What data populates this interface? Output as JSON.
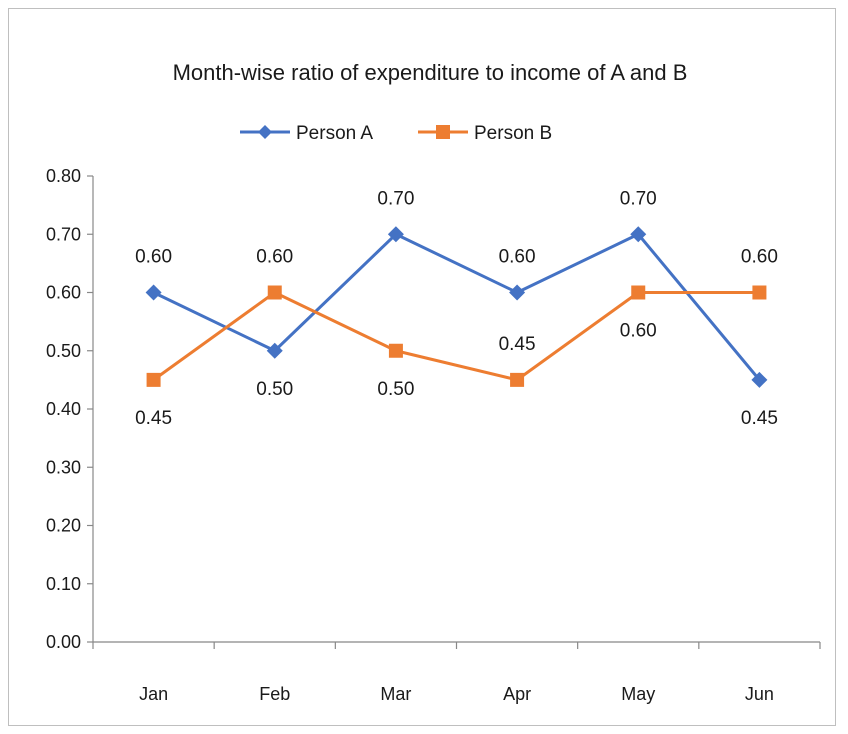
{
  "chart_data": {
    "type": "line",
    "title": "Month-wise ratio of expenditure to income of A and B",
    "categories": [
      "Jan",
      "Feb",
      "Mar",
      "Apr",
      "May",
      "Jun"
    ],
    "ylim": [
      0,
      0.8
    ],
    "yticks": [
      "0.00",
      "0.10",
      "0.20",
      "0.30",
      "0.40",
      "0.50",
      "0.60",
      "0.70",
      "0.80"
    ],
    "grid": false,
    "legend_position": "top",
    "series": [
      {
        "name": "Person A",
        "color": "#4472c4",
        "marker": "diamond",
        "values": [
          0.6,
          0.5,
          0.7,
          0.6,
          0.7,
          0.45
        ],
        "labels": [
          "0.60",
          "0.50",
          "0.70",
          "0.60",
          "0.70",
          "0.45"
        ],
        "label_positions": [
          "above",
          "below",
          "above",
          "above",
          "above",
          "below"
        ]
      },
      {
        "name": "Person B",
        "color": "#ed7d31",
        "marker": "square",
        "values": [
          0.45,
          0.6,
          0.5,
          0.45,
          0.6,
          0.6
        ],
        "labels": [
          "0.45",
          "0.60",
          "0.50",
          "0.45",
          "0.60",
          "0.60"
        ],
        "label_positions": [
          "below",
          "above",
          "below",
          "above",
          "below",
          "above"
        ]
      }
    ]
  }
}
